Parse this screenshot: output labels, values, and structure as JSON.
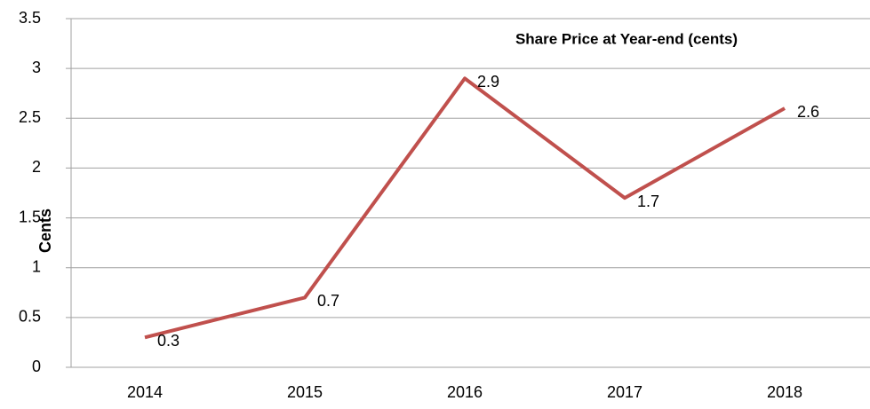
{
  "chart_data": {
    "type": "line",
    "title": "Share Price at Year-end (cents)",
    "y_label": "Cents",
    "categories": [
      "2014",
      "2015",
      "2016",
      "2017",
      "2018"
    ],
    "series": [
      {
        "name": "Share Price",
        "color": "#c0504d",
        "values": [
          0.3,
          0.7,
          2.9,
          1.7,
          2.6
        ]
      }
    ],
    "ylim": [
      0,
      3.5
    ],
    "yticks": [
      0,
      0.5,
      1,
      1.5,
      2,
      2.5,
      3,
      3.5
    ],
    "grid": true
  }
}
